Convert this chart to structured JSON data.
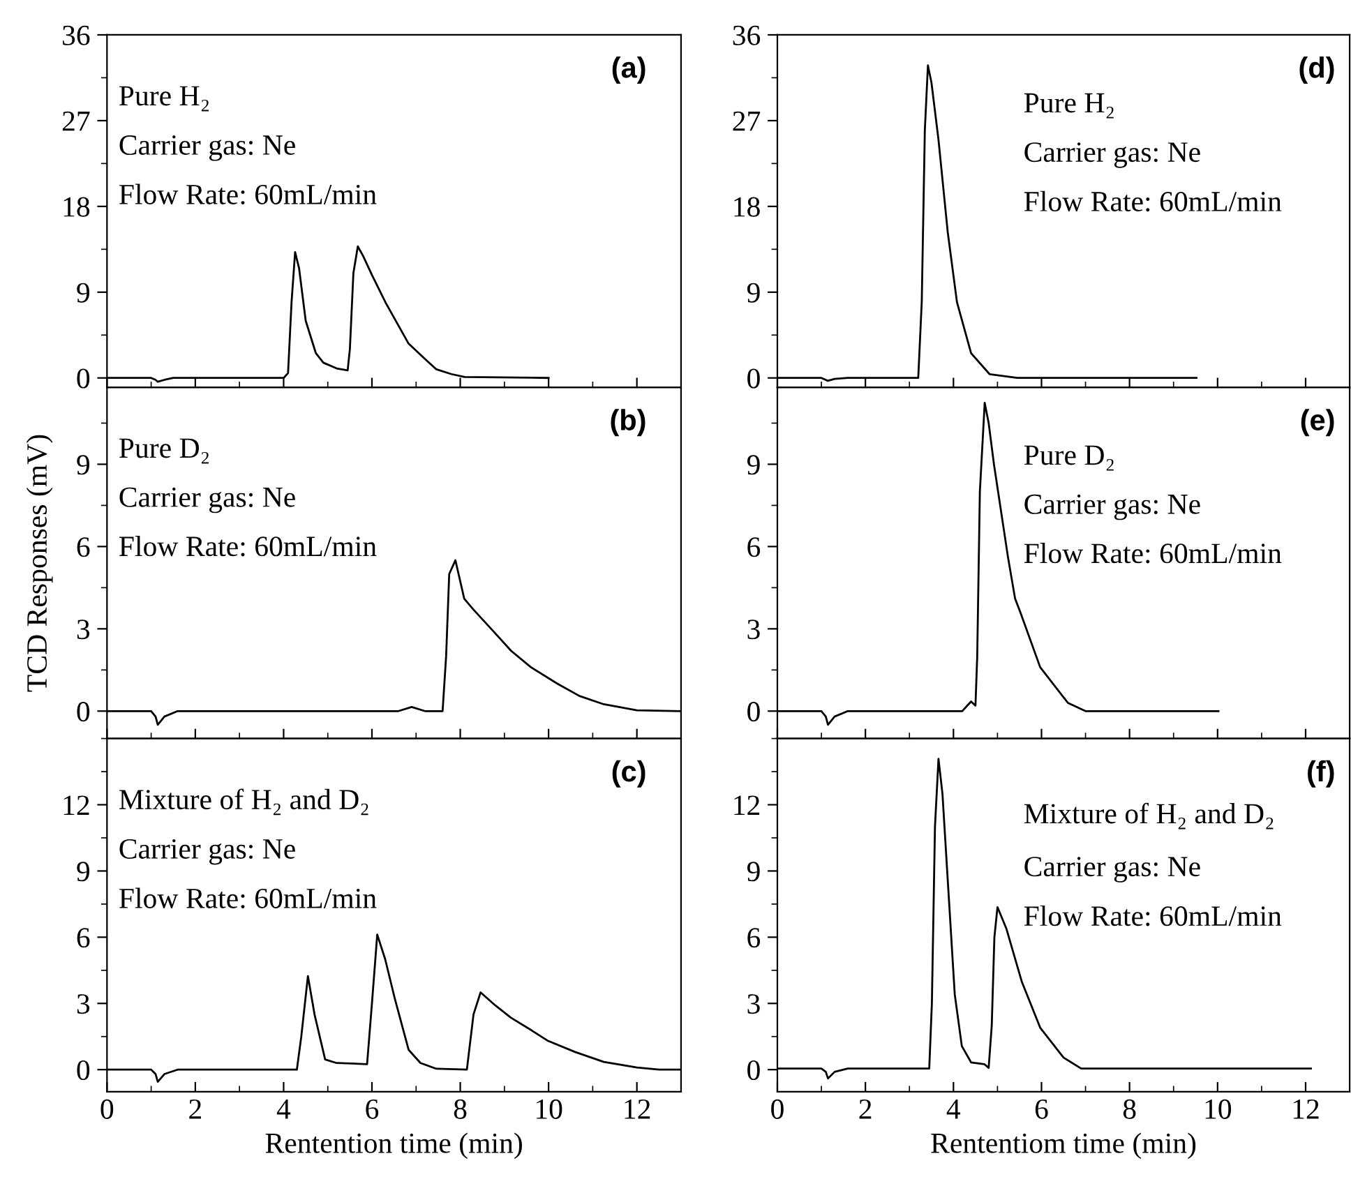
{
  "chart_data": [
    {
      "type": "line",
      "ylabel": null,
      "annotations": [
        "(a)",
        "Pure H₂",
        "Carrier gas: Ne",
        "Flow Rate: 60mL/min"
      ],
      "xlim": [
        0,
        13
      ],
      "ylim": [
        -1,
        36
      ],
      "xticks": [
        0,
        2,
        4,
        6,
        8,
        10,
        12
      ],
      "yticks": [
        0,
        9,
        18,
        27,
        36
      ],
      "tick_labels": "y",
      "series": [
        {
          "color": "#000000",
          "x": [
            0,
            1.0,
            1.1,
            1.15,
            1.3,
            1.5,
            4.0,
            4.1,
            4.18,
            4.26,
            4.35,
            4.5,
            4.73,
            4.9,
            5.2,
            5.45,
            5.5,
            5.58,
            5.68,
            5.8,
            6.0,
            6.31,
            6.6,
            6.83,
            7.2,
            7.46,
            7.8,
            8.1,
            10.0
          ],
          "values": [
            0,
            0,
            -0.2,
            -0.4,
            -0.2,
            0,
            0,
            0.5,
            8,
            13.2,
            11.5,
            6,
            2.6,
            1.6,
            1.0,
            0.8,
            3,
            11,
            13.8,
            12.8,
            10.8,
            7.9,
            5.5,
            3.6,
            2,
            0.9,
            0.4,
            0.1,
            0
          ]
        }
      ]
    },
    {
      "type": "line",
      "ylabel": "TCD Responses (mV)",
      "annotations": [
        "(b)",
        "Pure D₂",
        "Carrier gas: Ne",
        "Flow Rate: 60mL/min"
      ],
      "xlim": [
        0,
        13
      ],
      "ylim": [
        -1,
        11.8
      ],
      "xticks": [
        0,
        2,
        4,
        6,
        8,
        10,
        12
      ],
      "yticks": [
        0,
        3,
        6,
        9
      ],
      "tick_labels": "y",
      "series": [
        {
          "color": "#000000",
          "x": [
            0,
            1.0,
            1.1,
            1.15,
            1.3,
            1.6,
            6.6,
            6.9,
            7.2,
            7.6,
            7.68,
            7.75,
            7.89,
            8.09,
            8.3,
            8.7,
            9.15,
            9.6,
            10.2,
            10.7,
            11.25,
            12.0,
            13.0
          ],
          "values": [
            0,
            0,
            -0.2,
            -0.5,
            -0.2,
            0,
            0,
            0.15,
            0,
            0,
            2,
            5,
            5.5,
            4.1,
            3.7,
            3.0,
            2.2,
            1.6,
            1.0,
            0.55,
            0.25,
            0.03,
            0
          ]
        }
      ]
    },
    {
      "type": "line",
      "xlabel": "Rentention time (min)",
      "annotations": [
        "(c)",
        "Mixture of H₂ and D₂",
        "Carrier gas: Ne",
        "Flow Rate: 60mL/min"
      ],
      "xlim": [
        0,
        13
      ],
      "ylim": [
        -1,
        15
      ],
      "xticks": [
        0,
        2,
        4,
        6,
        8,
        10,
        12
      ],
      "yticks": [
        0,
        3,
        6,
        9,
        12
      ],
      "series": [
        {
          "color": "#000000",
          "x": [
            0,
            1.0,
            1.1,
            1.15,
            1.3,
            1.6,
            4.3,
            4.4,
            4.55,
            4.7,
            4.94,
            5.2,
            5.89,
            6.0,
            6.12,
            6.3,
            6.52,
            6.83,
            7.1,
            7.46,
            8.15,
            8.3,
            8.46,
            8.8,
            9.15,
            9.6,
            9.99,
            10.6,
            11.25,
            12.0,
            12.5,
            13.0
          ],
          "values": [
            0,
            0,
            -0.2,
            -0.55,
            -0.2,
            0,
            0,
            1.5,
            4.24,
            2.5,
            0.46,
            0.3,
            0.25,
            3,
            6.12,
            5.0,
            3.2,
            0.9,
            0.3,
            0.04,
            0,
            2.5,
            3.5,
            2.9,
            2.35,
            1.8,
            1.3,
            0.8,
            0.35,
            0.1,
            0,
            0
          ]
        }
      ]
    },
    {
      "type": "line",
      "annotations": [
        "(d)",
        "Pure H₂",
        "Carrier gas: Ne",
        "Flow Rate: 60mL/min"
      ],
      "xlim": [
        0,
        13
      ],
      "ylim": [
        -1,
        36
      ],
      "xticks": [
        0,
        2,
        4,
        6,
        8,
        10,
        12
      ],
      "yticks": [
        0,
        9,
        18,
        27,
        36
      ],
      "tick_labels": "y",
      "series": [
        {
          "color": "#000000",
          "x": [
            0,
            1.0,
            1.1,
            1.14,
            1.3,
            1.6,
            3.2,
            3.28,
            3.35,
            3.42,
            3.5,
            3.66,
            3.87,
            4.08,
            4.4,
            4.82,
            5.45,
            9.52
          ],
          "values": [
            0,
            0,
            -0.2,
            -0.3,
            -0.1,
            0,
            0,
            8,
            26,
            32.8,
            31,
            25.0,
            15.3,
            7.95,
            2.6,
            0.4,
            0,
            0
          ]
        }
      ]
    },
    {
      "type": "line",
      "annotations": [
        "(e)",
        "Pure D₂",
        "Carrier gas: Ne",
        "Flow Rate: 60mL/min"
      ],
      "xlim": [
        0,
        13
      ],
      "ylim": [
        -1,
        11.8
      ],
      "xticks": [
        0,
        2,
        4,
        6,
        8,
        10,
        12
      ],
      "yticks": [
        0,
        3,
        6,
        9
      ],
      "tick_labels": "y",
      "series": [
        {
          "color": "#000000",
          "x": [
            0,
            1.0,
            1.1,
            1.15,
            1.3,
            1.6,
            4.2,
            4.4,
            4.5,
            4.54,
            4.6,
            4.71,
            4.8,
            4.92,
            5.24,
            5.4,
            5.52,
            5.97,
            6.6,
            7.0,
            10.02
          ],
          "values": [
            0,
            0,
            -0.2,
            -0.5,
            -0.2,
            0,
            0,
            0.35,
            0.2,
            2,
            8,
            11.24,
            10.5,
            9.0,
            5.6,
            4.1,
            3.6,
            1.6,
            0.3,
            0,
            0
          ]
        }
      ]
    },
    {
      "type": "line",
      "xlabel": "Rententiom time (min)",
      "annotations": [
        "(f)",
        "Mixture of H₂ and D₂",
        "Carrier gas: Ne",
        "Flow Rate: 60mL/min"
      ],
      "xlim": [
        0,
        13
      ],
      "ylim": [
        -1,
        15
      ],
      "xticks": [
        0,
        2,
        4,
        6,
        8,
        10,
        12
      ],
      "yticks": [
        0,
        3,
        6,
        9,
        12
      ],
      "series": [
        {
          "color": "#000000",
          "x": [
            0,
            1.0,
            1.1,
            1.15,
            1.3,
            1.6,
            3.45,
            3.51,
            3.58,
            3.66,
            3.75,
            3.87,
            4.03,
            4.19,
            4.4,
            4.7,
            4.8,
            4.87,
            4.93,
            5.0,
            5.2,
            5.55,
            5.97,
            6.5,
            6.9,
            12.12
          ],
          "values": [
            0.05,
            0.05,
            -0.1,
            -0.4,
            -0.1,
            0.05,
            0.05,
            3,
            11,
            14.08,
            12.5,
            8.6,
            3.4,
            1.07,
            0.33,
            0.25,
            0.08,
            2,
            6,
            7.36,
            6.4,
            4.0,
            1.9,
            0.55,
            0.05,
            0.05
          ]
        }
      ]
    }
  ]
}
